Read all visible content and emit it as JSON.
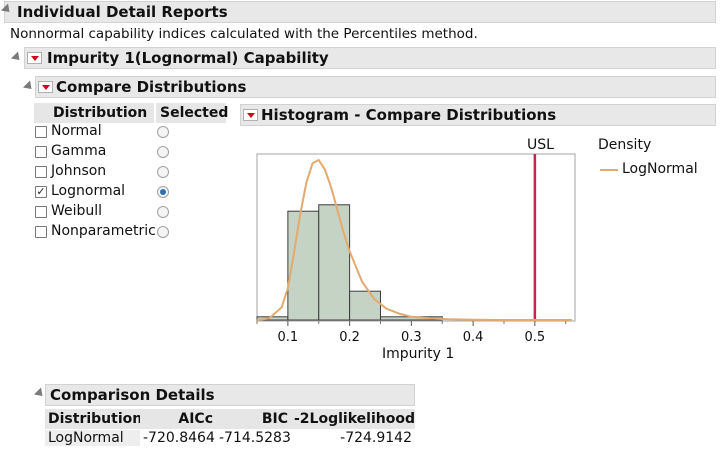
{
  "report": {
    "title": "Individual Detail Reports",
    "note": "Nonnormal capability indices calculated with the Percentiles method."
  },
  "capability": {
    "title": "Impurity 1(Lognormal) Capability"
  },
  "compare": {
    "title": "Compare Distributions",
    "col_distribution": "Distribution",
    "col_selected": "Selected",
    "distributions": [
      {
        "label": "Normal",
        "checked": false,
        "selected": false
      },
      {
        "label": "Gamma",
        "checked": false,
        "selected": false
      },
      {
        "label": "Johnson",
        "checked": false,
        "selected": false
      },
      {
        "label": "Lognormal",
        "checked": true,
        "selected": true
      },
      {
        "label": "Weibull",
        "checked": false,
        "selected": false
      },
      {
        "label": "Nonparametric",
        "checked": false,
        "selected": false
      }
    ]
  },
  "histogram": {
    "title": "Histogram - Compare Distributions",
    "usl_label": "USL",
    "legend_title": "Density",
    "legend_item": "LogNormal"
  },
  "chart_data": {
    "type": "bar",
    "xlabel": "Impurity 1",
    "xlim": [
      0.05,
      0.565
    ],
    "ylim": [
      0,
      1
    ],
    "xticks": [
      0.1,
      0.2,
      0.3,
      0.4,
      0.5
    ],
    "xtick_labels": [
      "0.1",
      "0.2",
      "0.3",
      "0.4",
      "0.5"
    ],
    "bins": [
      {
        "x0": 0.05,
        "x1": 0.1,
        "value": 0.02
      },
      {
        "x0": 0.1,
        "x1": 0.15,
        "value": 0.68
      },
      {
        "x0": 0.15,
        "x1": 0.2,
        "value": 0.72
      },
      {
        "x0": 0.2,
        "x1": 0.25,
        "value": 0.18
      },
      {
        "x0": 0.25,
        "x1": 0.35,
        "value": 0.02
      }
    ],
    "density_curve": {
      "name": "LogNormal",
      "x": [
        0.05,
        0.07,
        0.09,
        0.1,
        0.11,
        0.12,
        0.13,
        0.14,
        0.15,
        0.16,
        0.17,
        0.18,
        0.19,
        0.2,
        0.22,
        0.24,
        0.26,
        0.28,
        0.3,
        0.33,
        0.36,
        0.4,
        0.45,
        0.5,
        0.56
      ],
      "y": [
        0.0,
        0.01,
        0.08,
        0.2,
        0.42,
        0.66,
        0.86,
        0.98,
        1.0,
        0.94,
        0.83,
        0.69,
        0.55,
        0.43,
        0.24,
        0.13,
        0.07,
        0.04,
        0.02,
        0.01,
        0.005,
        0.002,
        0.0,
        0.0,
        0.0
      ]
    },
    "usl": 0.5,
    "grid": false,
    "legend": "right",
    "colors": {
      "bar_fill": "#c5d3c4",
      "bar_stroke": "#3c3c3c",
      "curve": "#e3a96f",
      "usl": "#c8244c"
    }
  },
  "comparison": {
    "title": "Comparison Details",
    "columns": [
      "Distribution",
      "AICc",
      "BIC",
      "-2Loglikelihood"
    ],
    "rows": [
      [
        "LogNormal",
        "-720.8464",
        "-714.5283",
        "-724.9142"
      ]
    ]
  }
}
